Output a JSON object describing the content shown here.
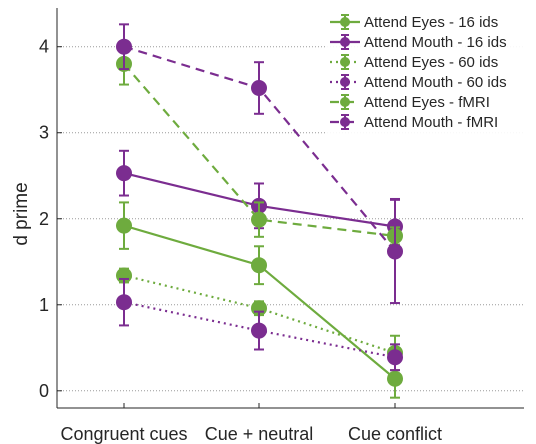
{
  "chart_data": {
    "type": "line",
    "title": "",
    "xlabel": "",
    "ylabel": "d prime",
    "categories": [
      "Congruent cues",
      "Cue + neutral",
      "Cue conflict"
    ],
    "ylim": [
      -0.2,
      4.45
    ],
    "yticks": [
      0,
      1,
      2,
      3,
      4
    ],
    "grid": "dotted horizontal lines at y ticks",
    "legend_position": "top-right",
    "colors": {
      "eyes": "#6EAB3E",
      "mouth": "#7B2D90"
    },
    "series": [
      {
        "name": "Attend Eyes - 16 ids",
        "group": "eyes",
        "linestyle": "solid",
        "values": [
          1.92,
          1.46,
          0.14
        ],
        "err": [
          0.27,
          0.22,
          0.22
        ]
      },
      {
        "name": "Attend Mouth - 16 ids",
        "group": "mouth",
        "linestyle": "solid",
        "values": [
          2.53,
          2.15,
          1.91
        ],
        "err": [
          0.26,
          0.26,
          0.32
        ]
      },
      {
        "name": "Attend Eyes - 60 ids",
        "group": "eyes",
        "linestyle": "dotted",
        "values": [
          1.34,
          0.96,
          0.44
        ],
        "err": [
          0.08,
          0.08,
          0.2
        ]
      },
      {
        "name": "Attend Mouth - 60 ids",
        "group": "mouth",
        "linestyle": "dotted",
        "values": [
          1.03,
          0.7,
          0.39
        ],
        "err": [
          0.27,
          0.22,
          0.15
        ]
      },
      {
        "name": "Attend Eyes - fMRI",
        "group": "eyes",
        "linestyle": "dashed",
        "values": [
          3.8,
          1.99,
          1.8
        ],
        "err": [
          0.24,
          0.2,
          0.1
        ]
      },
      {
        "name": "Attend Mouth - fMRI",
        "group": "mouth",
        "linestyle": "dashed",
        "values": [
          4.0,
          3.52,
          1.62
        ],
        "err": [
          0.26,
          0.3,
          0.6
        ]
      }
    ]
  }
}
